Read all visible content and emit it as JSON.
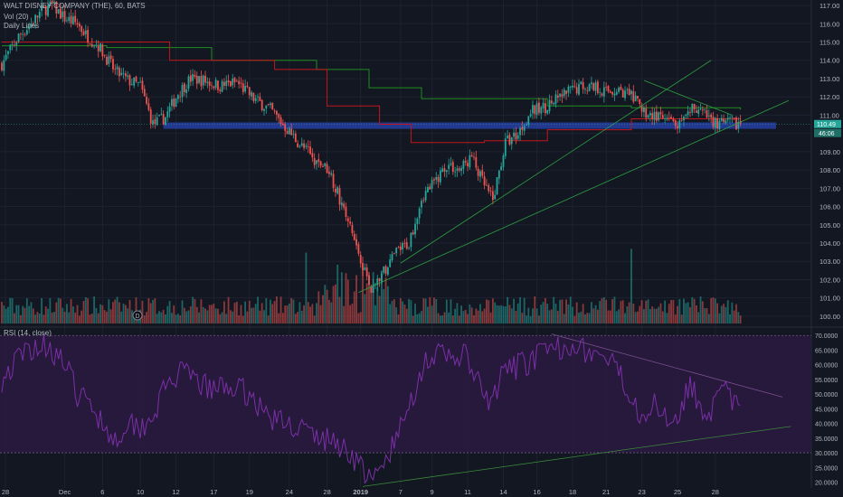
{
  "header": {
    "symbol_line": "WALT DISNEY COMPANY (THE), 60, BATS",
    "vol_label": "Vol (20)",
    "daily_label": "Daily Lines"
  },
  "rsi_panel": {
    "label": "RSI (14, close)"
  },
  "colors": {
    "background": "#131722",
    "up": "#26a69a",
    "down": "#ef5350",
    "grid": "#1e2230",
    "axis_text": "#b2b5be",
    "ma_green": "#1e8c1e",
    "ma_red": "#c3161c",
    "zone": "#2846b4",
    "rsi_line": "#7b2fa8",
    "rsi_band": "#2a1a3e",
    "price_badge": "#26a69a",
    "marker": "#7a7f8e"
  },
  "chart_data": [
    {
      "type": "candlestick",
      "title": "WALT DISNEY COMPANY (THE), 60, BATS",
      "y_ticks": [
        "117.00",
        "116.00",
        "115.00",
        "114.00",
        "113.00",
        "112.00",
        "111.00",
        "110.00",
        "109.00",
        "108.00",
        "107.00",
        "106.00",
        "105.00",
        "104.00",
        "103.00",
        "102.00",
        "101.00",
        "100.00"
      ],
      "ylim": [
        99.6,
        117.3
      ],
      "x_ticks": [
        "28",
        "Dec",
        "6",
        "10",
        "12",
        "17",
        "19",
        "24",
        "28",
        "2019",
        "7",
        "9",
        "11",
        "14",
        "16",
        "18",
        "21",
        "23",
        "25",
        "28"
      ],
      "last_price": "110.49",
      "countdown": "46:06",
      "key_points": [
        {
          "i": 0,
          "p": 113.8
        },
        {
          "i": 8,
          "p": 115.3
        },
        {
          "i": 14,
          "p": 116.0
        },
        {
          "i": 19,
          "p": 116.7
        },
        {
          "i": 24,
          "p": 117.0
        },
        {
          "i": 30,
          "p": 116.3
        },
        {
          "i": 36,
          "p": 116.0
        },
        {
          "i": 40,
          "p": 115.4
        },
        {
          "i": 46,
          "p": 114.8
        },
        {
          "i": 54,
          "p": 113.4
        },
        {
          "i": 60,
          "p": 112.9
        },
        {
          "i": 66,
          "p": 112.6
        },
        {
          "i": 72,
          "p": 110.5
        },
        {
          "i": 78,
          "p": 110.9
        },
        {
          "i": 84,
          "p": 112.2
        },
        {
          "i": 90,
          "p": 113.0
        },
        {
          "i": 96,
          "p": 112.9
        },
        {
          "i": 104,
          "p": 112.6
        },
        {
          "i": 112,
          "p": 112.8
        },
        {
          "i": 120,
          "p": 111.9
        },
        {
          "i": 128,
          "p": 111.3
        },
        {
          "i": 134,
          "p": 110.5
        },
        {
          "i": 142,
          "p": 109.4
        },
        {
          "i": 150,
          "p": 108.5
        },
        {
          "i": 156,
          "p": 108.0
        },
        {
          "i": 164,
          "p": 105.5
        },
        {
          "i": 170,
          "p": 103.5
        },
        {
          "i": 176,
          "p": 101.5
        },
        {
          "i": 182,
          "p": 102.4
        },
        {
          "i": 188,
          "p": 103.5
        },
        {
          "i": 194,
          "p": 104.0
        },
        {
          "i": 200,
          "p": 106.5
        },
        {
          "i": 206,
          "p": 107.3
        },
        {
          "i": 212,
          "p": 108.3
        },
        {
          "i": 218,
          "p": 108.0
        },
        {
          "i": 224,
          "p": 108.7
        },
        {
          "i": 228,
          "p": 107.6
        },
        {
          "i": 234,
          "p": 106.3
        },
        {
          "i": 240,
          "p": 109.5
        },
        {
          "i": 246,
          "p": 110.0
        },
        {
          "i": 252,
          "p": 111.2
        },
        {
          "i": 258,
          "p": 111.4
        },
        {
          "i": 264,
          "p": 111.8
        },
        {
          "i": 270,
          "p": 112.3
        },
        {
          "i": 276,
          "p": 112.6
        },
        {
          "i": 282,
          "p": 112.6
        },
        {
          "i": 288,
          "p": 112.3
        },
        {
          "i": 294,
          "p": 112.4
        },
        {
          "i": 300,
          "p": 112.0
        },
        {
          "i": 306,
          "p": 111.2
        },
        {
          "i": 312,
          "p": 110.9
        },
        {
          "i": 318,
          "p": 110.6
        },
        {
          "i": 324,
          "p": 110.4
        },
        {
          "i": 330,
          "p": 111.5
        },
        {
          "i": 336,
          "p": 110.9
        },
        {
          "i": 342,
          "p": 110.5
        },
        {
          "i": 348,
          "p": 110.6
        },
        {
          "i": 352,
          "p": 110.5
        }
      ],
      "candle_count": 353,
      "lines": [
        {
          "name": "",
          "color": "green",
          "points": [
            [
              0,
              114.8
            ],
            [
              50,
              114.7
            ],
            [
              100,
              114.0
            ],
            [
              150,
              113.5
            ],
            [
              175,
              112.5
            ],
            [
              200,
              111.9
            ],
            [
              260,
              111.5
            ],
            [
              300,
              111.4
            ],
            [
              352,
              111.3
            ]
          ]
        },
        {
          "name": "",
          "color": "red",
          "points": [
            [
              0,
              115.0
            ],
            [
              40,
              115.0
            ],
            [
              80,
              114.0
            ],
            [
              130,
              113.5
            ],
            [
              155,
              111.5
            ],
            [
              180,
              110.5
            ],
            [
              195,
              109.5
            ],
            [
              230,
              109.6
            ],
            [
              260,
              110.2
            ],
            [
              300,
              110.8
            ],
            [
              352,
              110.6
            ]
          ]
        }
      ],
      "zone": {
        "from": 110.25,
        "to": 110.6,
        "start_i": 77,
        "end_i": 372
      },
      "trendlines": [
        {
          "from": [
            190,
            102.9
          ],
          "to": [
            338,
            114.0
          ]
        },
        {
          "from": [
            170,
            101.3
          ],
          "to": [
            375,
            111.8
          ]
        },
        {
          "from": [
            306,
            112.9
          ],
          "to": [
            348,
            111.0
          ]
        }
      ]
    },
    {
      "type": "bar",
      "title": "Vol (20)"
    },
    {
      "type": "line",
      "title": "RSI (14, close)",
      "y_ticks": [
        "70.0000",
        "65.0000",
        "60.0000",
        "55.0000",
        "50.0000",
        "45.0000",
        "40.0000",
        "35.0000",
        "30.0000",
        "25.0000",
        "20.0000"
      ],
      "ylim": [
        18,
        71
      ],
      "bands": [
        30,
        70
      ],
      "key_points": [
        {
          "i": 0,
          "v": 55
        },
        {
          "i": 8,
          "v": 62
        },
        {
          "i": 14,
          "v": 66
        },
        {
          "i": 22,
          "v": 67
        },
        {
          "i": 30,
          "v": 60
        },
        {
          "i": 36,
          "v": 50
        },
        {
          "i": 44,
          "v": 45
        },
        {
          "i": 54,
          "v": 34
        },
        {
          "i": 60,
          "v": 41
        },
        {
          "i": 66,
          "v": 39
        },
        {
          "i": 72,
          "v": 43
        },
        {
          "i": 78,
          "v": 52
        },
        {
          "i": 84,
          "v": 57
        },
        {
          "i": 92,
          "v": 55
        },
        {
          "i": 100,
          "v": 51
        },
        {
          "i": 108,
          "v": 53
        },
        {
          "i": 118,
          "v": 50
        },
        {
          "i": 126,
          "v": 43
        },
        {
          "i": 134,
          "v": 40
        },
        {
          "i": 142,
          "v": 39
        },
        {
          "i": 150,
          "v": 35
        },
        {
          "i": 158,
          "v": 34
        },
        {
          "i": 166,
          "v": 30
        },
        {
          "i": 172,
          "v": 25
        },
        {
          "i": 176,
          "v": 19
        },
        {
          "i": 182,
          "v": 26
        },
        {
          "i": 190,
          "v": 38
        },
        {
          "i": 196,
          "v": 50
        },
        {
          "i": 202,
          "v": 62
        },
        {
          "i": 208,
          "v": 63
        },
        {
          "i": 214,
          "v": 62
        },
        {
          "i": 220,
          "v": 64
        },
        {
          "i": 226,
          "v": 55
        },
        {
          "i": 232,
          "v": 46
        },
        {
          "i": 240,
          "v": 58
        },
        {
          "i": 248,
          "v": 60
        },
        {
          "i": 256,
          "v": 63
        },
        {
          "i": 264,
          "v": 65
        },
        {
          "i": 272,
          "v": 68
        },
        {
          "i": 280,
          "v": 64
        },
        {
          "i": 288,
          "v": 62
        },
        {
          "i": 296,
          "v": 55
        },
        {
          "i": 304,
          "v": 44
        },
        {
          "i": 312,
          "v": 46
        },
        {
          "i": 320,
          "v": 41
        },
        {
          "i": 328,
          "v": 53
        },
        {
          "i": 336,
          "v": 43
        },
        {
          "i": 344,
          "v": 51
        },
        {
          "i": 352,
          "v": 45
        }
      ],
      "trendlines": [
        {
          "from": [
            262,
            70.5
          ],
          "to": [
            372,
            49.0
          ]
        },
        {
          "from": [
            172,
            18.5
          ],
          "to": [
            376,
            39.0
          ]
        }
      ]
    }
  ]
}
